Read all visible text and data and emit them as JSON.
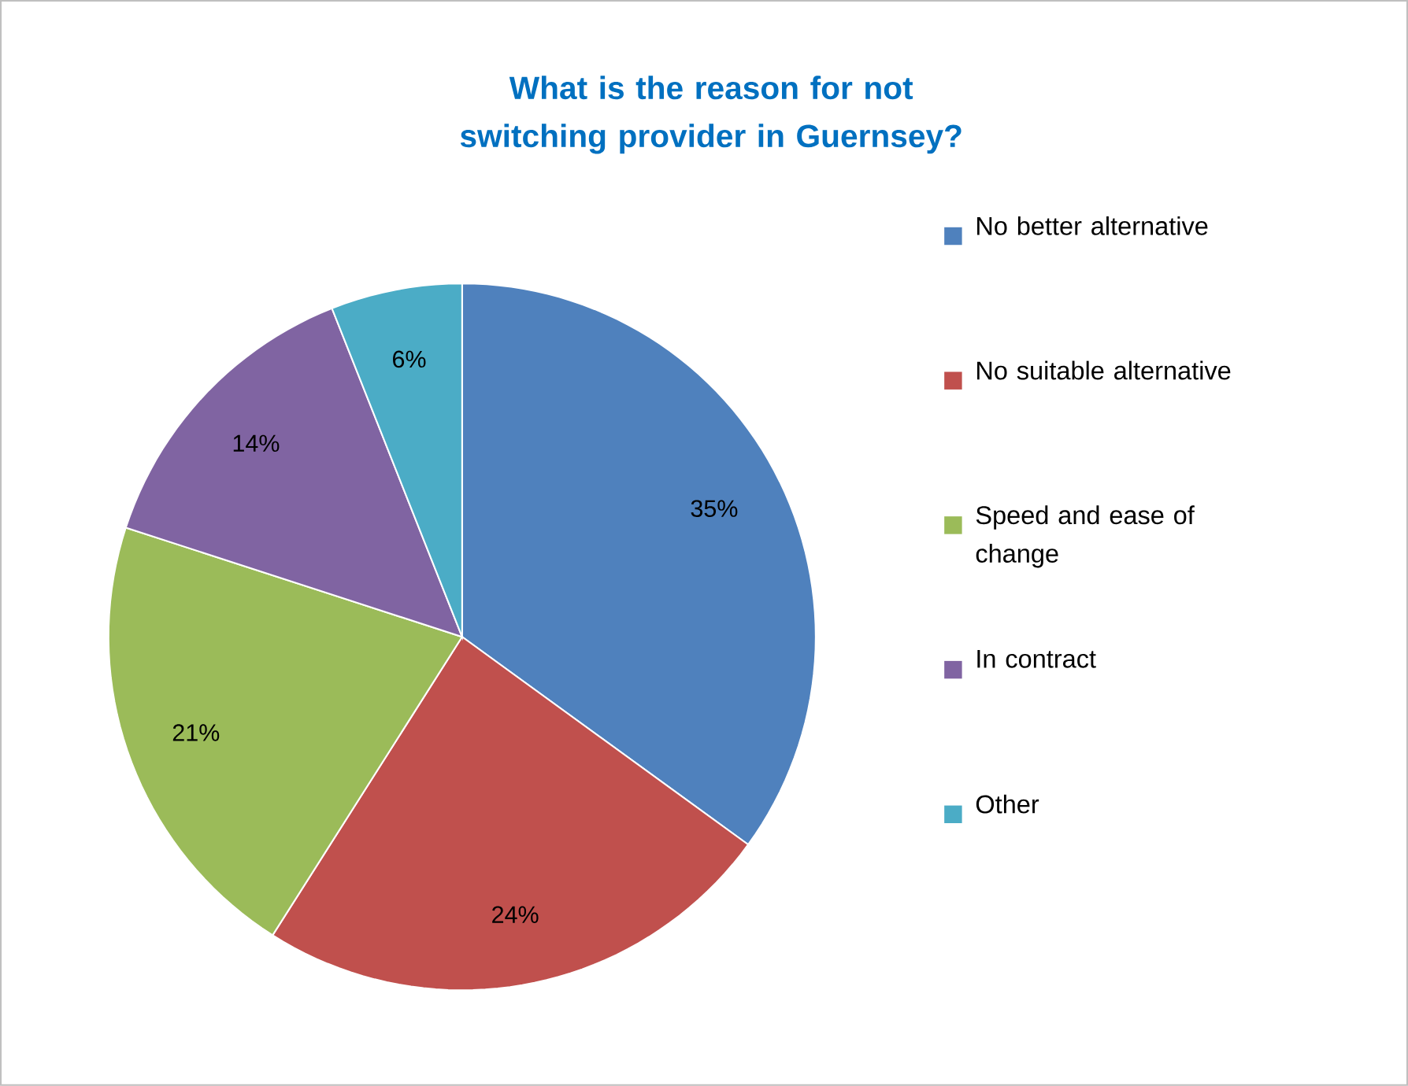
{
  "chart_data": {
    "type": "pie",
    "title": "What is the reason for not switching provider in Guernsey?",
    "categories": [
      "No better alternative",
      "No suitable alternative",
      "Speed and ease of change",
      "In contract",
      "Other"
    ],
    "values": [
      35,
      24,
      21,
      14,
      6
    ],
    "colors": [
      "#4f81bd",
      "#c0504d",
      "#9bbb59",
      "#8064a2",
      "#4bacc6"
    ],
    "value_labels": [
      "35%",
      "24%",
      "21%",
      "14%",
      "6%"
    ],
    "legend": "right"
  }
}
